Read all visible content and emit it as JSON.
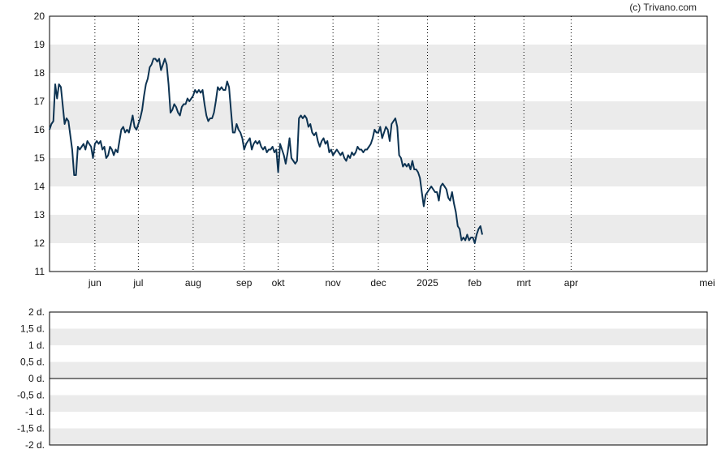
{
  "credit": "(c) Trivano.com",
  "colors": {
    "line": "#0d3352",
    "band": "#ebebeb",
    "axis": "#000000",
    "grid": "#000000"
  },
  "chart_data": [
    {
      "type": "line",
      "title": "",
      "xlabel": "",
      "ylabel": "",
      "ylim": [
        11,
        20
      ],
      "yticks": [
        "11",
        "12",
        "13",
        "14",
        "15",
        "16",
        "17",
        "18",
        "19",
        "20"
      ],
      "x_range": [
        0,
        348
      ],
      "x_unit": "days from first point",
      "month_labels": [
        {
          "label": "jun",
          "x": 24
        },
        {
          "label": "jul",
          "x": 47
        },
        {
          "label": "aug",
          "x": 76
        },
        {
          "label": "sep",
          "x": 103
        },
        {
          "label": "okt",
          "x": 121
        },
        {
          "label": "nov",
          "x": 150
        },
        {
          "label": "dec",
          "x": 174
        },
        {
          "label": "2025",
          "x": 200
        },
        {
          "label": "feb",
          "x": 225
        },
        {
          "label": "mrt",
          "x": 251
        },
        {
          "label": "apr",
          "x": 276
        },
        {
          "label": "mei",
          "x": 348
        }
      ],
      "grid": "vertical dotted at month boundaries, alternating horizontal bands",
      "series": [
        {
          "points": [
            [
              0,
              16.0
            ],
            [
              1,
              16.2
            ],
            [
              2,
              16.3
            ],
            [
              3,
              17.6
            ],
            [
              4,
              17.1
            ],
            [
              5,
              17.6
            ],
            [
              6,
              17.5
            ],
            [
              8,
              16.2
            ],
            [
              9,
              16.4
            ],
            [
              10,
              16.3
            ],
            [
              11,
              15.8
            ],
            [
              12,
              15.3
            ],
            [
              13,
              14.4
            ],
            [
              14,
              14.4
            ],
            [
              15,
              15.4
            ],
            [
              16,
              15.3
            ],
            [
              17,
              15.4
            ],
            [
              18,
              15.5
            ],
            [
              19,
              15.3
            ],
            [
              20,
              15.6
            ],
            [
              21,
              15.5
            ],
            [
              22,
              15.4
            ],
            [
              23,
              15.0
            ],
            [
              24,
              15.5
            ],
            [
              25,
              15.6
            ],
            [
              26,
              15.5
            ],
            [
              27,
              15.6
            ],
            [
              28,
              15.3
            ],
            [
              29,
              15.4
            ],
            [
              30,
              15.0
            ],
            [
              31,
              15.1
            ],
            [
              32,
              15.4
            ],
            [
              33,
              15.3
            ],
            [
              34,
              15.1
            ],
            [
              35,
              15.3
            ],
            [
              36,
              15.2
            ],
            [
              37,
              15.6
            ],
            [
              38,
              16.0
            ],
            [
              39,
              16.1
            ],
            [
              40,
              15.9
            ],
            [
              41,
              16.0
            ],
            [
              42,
              15.9
            ],
            [
              43,
              16.2
            ],
            [
              44,
              16.5
            ],
            [
              45,
              16.1
            ],
            [
              46,
              16.0
            ],
            [
              47,
              16.2
            ],
            [
              48,
              16.4
            ],
            [
              49,
              16.7
            ],
            [
              50,
              17.2
            ],
            [
              51,
              17.6
            ],
            [
              52,
              17.8
            ],
            [
              53,
              18.2
            ],
            [
              54,
              18.3
            ],
            [
              55,
              18.5
            ],
            [
              56,
              18.5
            ],
            [
              57,
              18.4
            ],
            [
              58,
              18.5
            ],
            [
              59,
              18.1
            ],
            [
              60,
              18.3
            ],
            [
              61,
              18.5
            ],
            [
              62,
              18.3
            ],
            [
              63,
              17.6
            ],
            [
              64,
              16.6
            ],
            [
              65,
              16.7
            ],
            [
              66,
              16.9
            ],
            [
              67,
              16.8
            ],
            [
              68,
              16.6
            ],
            [
              69,
              16.5
            ],
            [
              70,
              16.8
            ],
            [
              71,
              16.9
            ],
            [
              72,
              16.9
            ],
            [
              73,
              17.1
            ],
            [
              74,
              17.0
            ],
            [
              75,
              17.1
            ],
            [
              76,
              17.2
            ],
            [
              77,
              17.4
            ],
            [
              78,
              17.3
            ],
            [
              79,
              17.4
            ],
            [
              80,
              17.3
            ],
            [
              81,
              17.4
            ],
            [
              82,
              16.9
            ],
            [
              83,
              16.5
            ],
            [
              84,
              16.3
            ],
            [
              85,
              16.4
            ],
            [
              86,
              16.4
            ],
            [
              87,
              16.6
            ],
            [
              88,
              17.0
            ],
            [
              89,
              17.5
            ],
            [
              90,
              17.4
            ],
            [
              91,
              17.5
            ],
            [
              92,
              17.4
            ],
            [
              93,
              17.4
            ],
            [
              94,
              17.7
            ],
            [
              95,
              17.5
            ],
            [
              96,
              16.7
            ],
            [
              97,
              15.9
            ],
            [
              98,
              15.9
            ],
            [
              99,
              16.2
            ],
            [
              100,
              16.0
            ],
            [
              101,
              15.9
            ],
            [
              102,
              15.7
            ],
            [
              103,
              15.3
            ],
            [
              104,
              15.5
            ],
            [
              105,
              15.6
            ],
            [
              106,
              15.7
            ],
            [
              107,
              15.3
            ],
            [
              108,
              15.5
            ],
            [
              109,
              15.6
            ],
            [
              110,
              15.5
            ],
            [
              111,
              15.6
            ],
            [
              112,
              15.4
            ],
            [
              113,
              15.3
            ],
            [
              114,
              15.4
            ],
            [
              115,
              15.2
            ],
            [
              116,
              15.3
            ],
            [
              117,
              15.3
            ],
            [
              118,
              15.4
            ],
            [
              119,
              15.2
            ],
            [
              120,
              15.3
            ],
            [
              121,
              14.5
            ],
            [
              122,
              15.5
            ],
            [
              123,
              15.3
            ],
            [
              124,
              15.1
            ],
            [
              125,
              14.8
            ],
            [
              126,
              15.2
            ],
            [
              127,
              15.7
            ],
            [
              128,
              15.0
            ],
            [
              129,
              14.9
            ],
            [
              130,
              14.8
            ],
            [
              131,
              14.9
            ],
            [
              132,
              16.4
            ],
            [
              133,
              16.5
            ],
            [
              134,
              16.4
            ],
            [
              135,
              16.5
            ],
            [
              136,
              16.4
            ],
            [
              137,
              16.1
            ],
            [
              138,
              16.2
            ],
            [
              139,
              15.9
            ],
            [
              140,
              15.8
            ],
            [
              141,
              15.9
            ],
            [
              142,
              15.6
            ],
            [
              143,
              15.4
            ],
            [
              144,
              15.6
            ],
            [
              145,
              15.7
            ],
            [
              146,
              15.5
            ],
            [
              147,
              15.6
            ],
            [
              148,
              15.2
            ],
            [
              149,
              15.3
            ],
            [
              150,
              15.1
            ],
            [
              151,
              15.2
            ],
            [
              152,
              15.3
            ],
            [
              153,
              15.2
            ],
            [
              154,
              15.1
            ],
            [
              155,
              15.2
            ],
            [
              156,
              15.0
            ],
            [
              157,
              14.9
            ],
            [
              158,
              15.1
            ],
            [
              159,
              15.0
            ],
            [
              160,
              15.2
            ],
            [
              161,
              15.1
            ],
            [
              162,
              15.2
            ],
            [
              163,
              15.4
            ],
            [
              164,
              15.3
            ],
            [
              165,
              15.3
            ],
            [
              166,
              15.2
            ],
            [
              167,
              15.3
            ],
            [
              168,
              15.3
            ],
            [
              169,
              15.4
            ],
            [
              170,
              15.5
            ],
            [
              171,
              15.7
            ],
            [
              172,
              16.0
            ],
            [
              173,
              15.9
            ],
            [
              174,
              15.9
            ],
            [
              175,
              16.1
            ],
            [
              176,
              15.7
            ],
            [
              177,
              15.9
            ],
            [
              178,
              16.1
            ],
            [
              179,
              16.0
            ],
            [
              180,
              15.6
            ],
            [
              181,
              16.2
            ],
            [
              182,
              16.3
            ],
            [
              183,
              16.4
            ],
            [
              184,
              16.1
            ],
            [
              185,
              15.1
            ],
            [
              186,
              15.0
            ],
            [
              187,
              14.7
            ],
            [
              188,
              14.8
            ],
            [
              189,
              14.7
            ],
            [
              190,
              14.8
            ],
            [
              191,
              14.6
            ],
            [
              192,
              14.9
            ],
            [
              193,
              14.6
            ],
            [
              194,
              14.6
            ],
            [
              195,
              14.5
            ],
            [
              196,
              14.3
            ],
            [
              197,
              13.8
            ],
            [
              198,
              13.3
            ],
            [
              199,
              13.7
            ],
            [
              200,
              13.8
            ],
            [
              201,
              13.9
            ],
            [
              202,
              14.0
            ],
            [
              203,
              13.9
            ],
            [
              204,
              13.8
            ],
            [
              205,
              13.8
            ],
            [
              206,
              13.5
            ],
            [
              207,
              14.0
            ],
            [
              208,
              14.1
            ],
            [
              209,
              14.0
            ],
            [
              210,
              13.9
            ],
            [
              211,
              13.6
            ],
            [
              212,
              13.5
            ],
            [
              213,
              13.8
            ],
            [
              214,
              13.4
            ],
            [
              215,
              13.1
            ],
            [
              216,
              12.6
            ],
            [
              217,
              12.5
            ],
            [
              218,
              12.1
            ],
            [
              219,
              12.2
            ],
            [
              220,
              12.1
            ],
            [
              221,
              12.3
            ],
            [
              222,
              12.1
            ],
            [
              223,
              12.2
            ],
            [
              224,
              12.2
            ],
            [
              225,
              12.0
            ],
            [
              226,
              12.3
            ],
            [
              227,
              12.5
            ],
            [
              228,
              12.6
            ],
            [
              229,
              12.3
            ]
          ]
        }
      ]
    },
    {
      "type": "line",
      "title": "",
      "xlabel": "",
      "ylabel": "",
      "ylim": [
        -2,
        2
      ],
      "yticks": [
        "2 d.",
        "1,5 d.",
        "1 d.",
        "0,5 d.",
        "0 d.",
        "-0,5 d.",
        "-1 d.",
        "-1,5 d.",
        "-2 d."
      ],
      "grid": "alternating horizontal bands, baseline at 0",
      "series": []
    }
  ]
}
